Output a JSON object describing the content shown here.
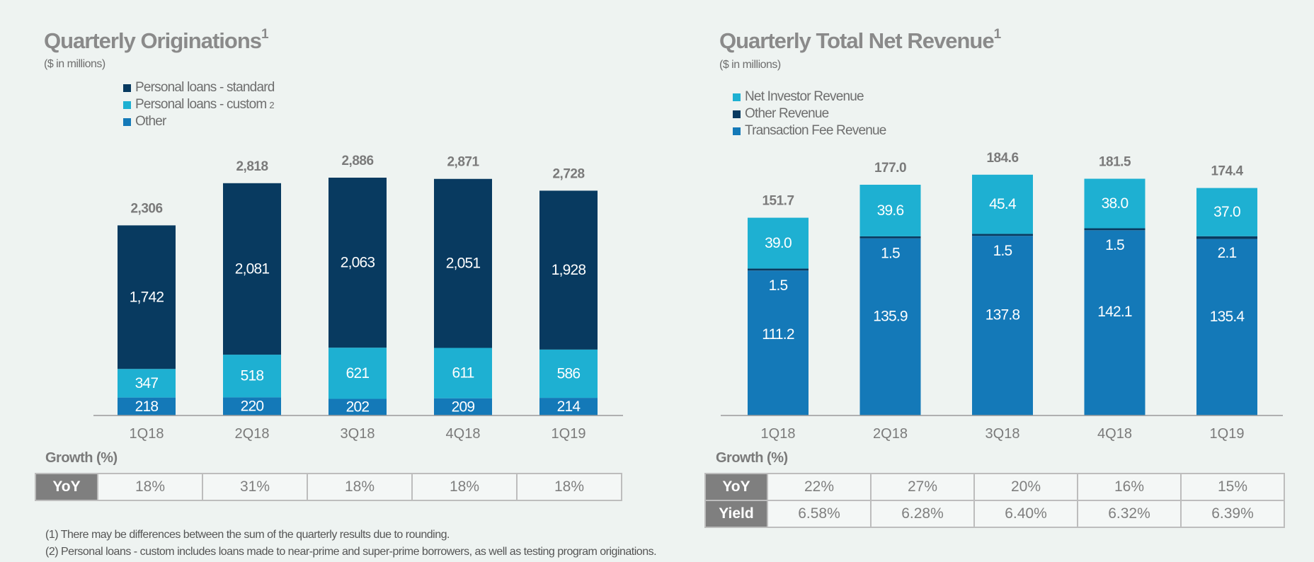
{
  "left": {
    "title": "Quarterly Originations",
    "title_sup": "1",
    "subtitle": "($ in millions)",
    "legend": [
      {
        "label": "Personal loans - standard",
        "sup": "",
        "color": "#083a60"
      },
      {
        "label": "Personal loans - custom",
        "sup": "2",
        "color": "#1eb0d2"
      },
      {
        "label": "Other",
        "sup": "",
        "color": "#1479b8"
      }
    ],
    "growth_label": "Growth (%)",
    "growth_rows": [
      {
        "label": "YoY",
        "values": [
          "18%",
          "31%",
          "18%",
          "18%",
          "18%"
        ]
      }
    ]
  },
  "right": {
    "title": "Quarterly Total Net Revenue",
    "title_sup": "1",
    "subtitle": "($ in millions)",
    "legend": [
      {
        "label": "Net Investor Revenue",
        "sup": "",
        "color": "#1eb0d2"
      },
      {
        "label": "Other Revenue",
        "sup": "",
        "color": "#083a60"
      },
      {
        "label": "Transaction Fee Revenue",
        "sup": "",
        "color": "#1479b8"
      }
    ],
    "growth_label": "Growth (%)",
    "growth_rows": [
      {
        "label": "YoY",
        "values": [
          "22%",
          "27%",
          "20%",
          "16%",
          "15%"
        ]
      },
      {
        "label": "Yield",
        "values": [
          "6.58%",
          "6.28%",
          "6.40%",
          "6.32%",
          "6.39%"
        ]
      }
    ]
  },
  "chart_data": [
    {
      "type": "bar",
      "stacked": true,
      "title": "Quarterly Originations",
      "subtitle": "($ in millions)",
      "categories": [
        "1Q18",
        "2Q18",
        "3Q18",
        "4Q18",
        "1Q19"
      ],
      "series": [
        {
          "name": "Other",
          "values": [
            218,
            220,
            202,
            209,
            214
          ],
          "labels": [
            "218",
            "220",
            "202",
            "209",
            "214"
          ],
          "color": "#1479b8"
        },
        {
          "name": "Personal loans - custom",
          "values": [
            347,
            518,
            621,
            611,
            586
          ],
          "labels": [
            "347",
            "518",
            "621",
            "611",
            "586"
          ],
          "color": "#1eb0d2"
        },
        {
          "name": "Personal loans - standard",
          "values": [
            1742,
            2081,
            2063,
            2051,
            1928
          ],
          "labels": [
            "1,742",
            "2,081",
            "2,063",
            "2,051",
            "1,928"
          ],
          "color": "#083a60"
        }
      ],
      "totals": [
        "2,306",
        "2,818",
        "2,886",
        "2,871",
        "2,728"
      ],
      "ylim": [
        0,
        2886
      ]
    },
    {
      "type": "bar",
      "stacked": true,
      "title": "Quarterly Total Net Revenue",
      "subtitle": "($ in millions)",
      "categories": [
        "1Q18",
        "2Q18",
        "3Q18",
        "4Q18",
        "1Q19"
      ],
      "series": [
        {
          "name": "Transaction Fee Revenue",
          "values": [
            111.2,
            135.9,
            137.8,
            142.1,
            135.4
          ],
          "labels": [
            "111.2",
            "135.9",
            "137.8",
            "142.1",
            "135.4"
          ],
          "color": "#1479b8"
        },
        {
          "name": "Other Revenue",
          "values": [
            1.5,
            1.5,
            1.5,
            1.5,
            2.1
          ],
          "labels": [
            "1.5",
            "1.5",
            "1.5",
            "1.5",
            "2.1"
          ],
          "color": "#083a60"
        },
        {
          "name": "Net Investor Revenue",
          "values": [
            39.0,
            39.6,
            45.4,
            38.0,
            37.0
          ],
          "labels": [
            "39.0",
            "39.6",
            "45.4",
            "38.0",
            "37.0"
          ],
          "color": "#1eb0d2"
        }
      ],
      "totals": [
        "151.7",
        "177.0",
        "184.6",
        "181.5",
        "174.4"
      ],
      "ylim": [
        0,
        184.6
      ]
    }
  ],
  "footnotes": [
    "(1)  There may be differences between the sum of the quarterly results due to rounding.",
    "(2)  Personal loans - custom includes loans made to near-prime and super-prime borrowers, as well as testing program originations."
  ]
}
